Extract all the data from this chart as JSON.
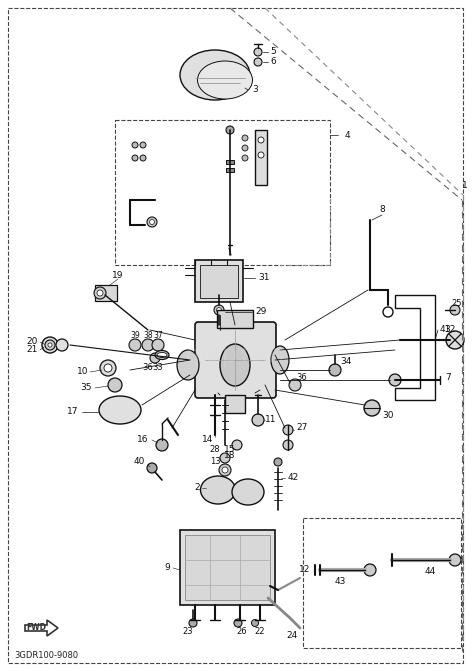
{
  "background_color": "#ffffff",
  "line_color": "#111111",
  "text_color": "#111111",
  "fig_width": 4.74,
  "fig_height": 6.71,
  "dpi": 100,
  "part_code": "3GDR100-9080"
}
